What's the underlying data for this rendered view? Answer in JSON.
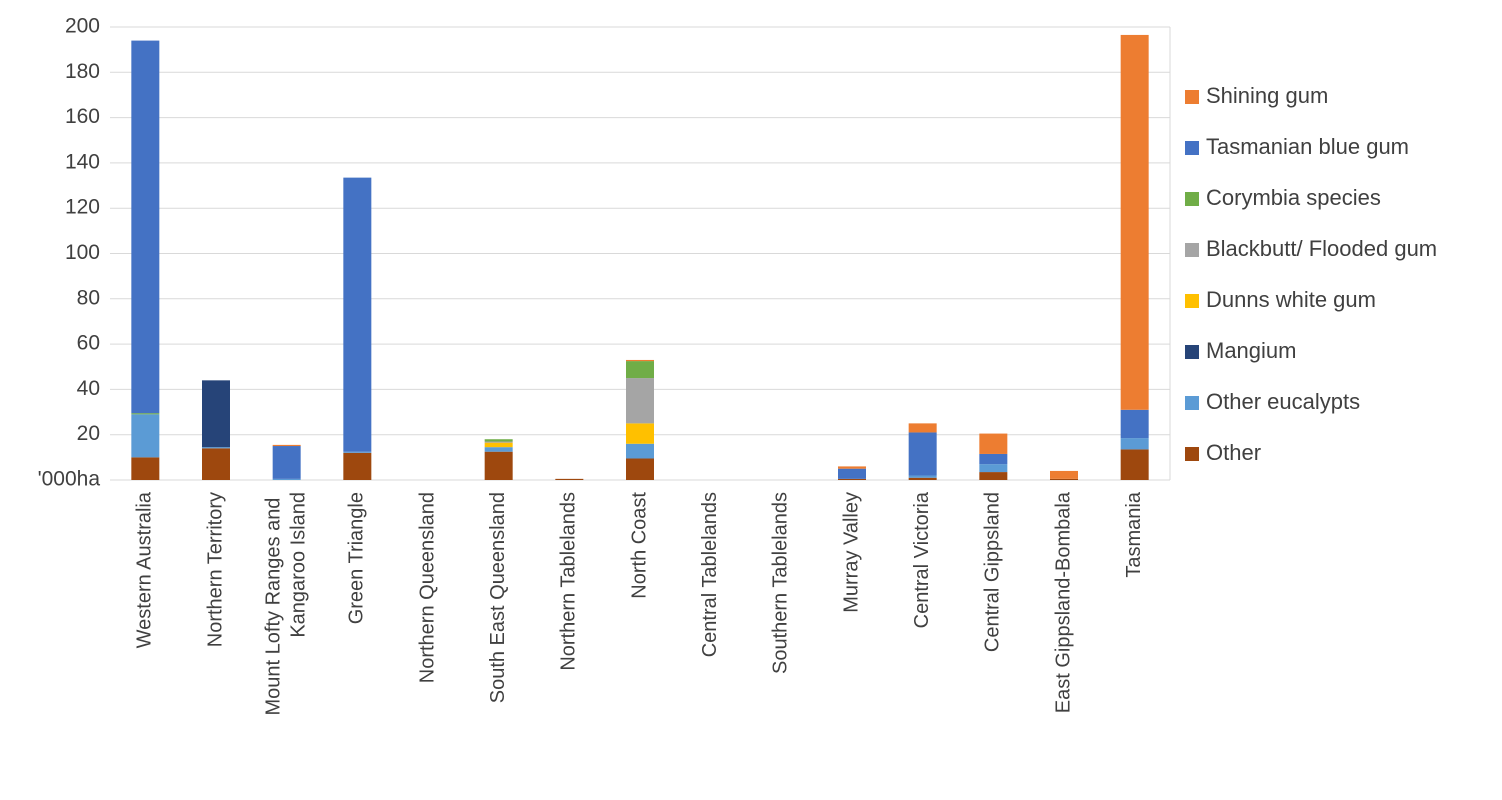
{
  "chart_data": {
    "type": "stacked_bar",
    "categories": [
      "Western Australia",
      "Northern Territory",
      "Mount Lofty Ranges and Kangaroo Island",
      "Green Triangle",
      "Northern Queensland",
      "South East Queensland",
      "Northern Tablelands",
      "North Coast",
      "Central Tablelands",
      "Southern Tablelands",
      "Murray Valley",
      "Central Victoria",
      "Central Gippsland",
      "East Gippsland-Bombala",
      "Tasmania"
    ],
    "series": [
      {
        "name": "Other",
        "color": "#9e480e",
        "values": [
          10,
          14,
          0,
          12,
          0,
          12.5,
          0.5,
          9.5,
          0,
          0,
          0.5,
          1,
          3.5,
          0.5,
          13.5
        ]
      },
      {
        "name": "Other eucalypts",
        "color": "#5b9bd5",
        "values": [
          19,
          0.5,
          0.5,
          0.5,
          0,
          2,
          0,
          6.5,
          0,
          0,
          0,
          1,
          3.5,
          0,
          5
        ]
      },
      {
        "name": "Mangium",
        "color": "#264478",
        "values": [
          0,
          29.5,
          0,
          0,
          0,
          0,
          0,
          0,
          0,
          0,
          0,
          0,
          0,
          0,
          0
        ]
      },
      {
        "name": "Dunns white gum",
        "color": "#ffc000",
        "values": [
          0,
          0,
          0,
          0,
          0,
          2,
          0,
          9,
          0,
          0,
          0,
          0,
          0,
          0,
          0
        ]
      },
      {
        "name": "Blackbutt/ Flooded gum",
        "color": "#a5a5a5",
        "values": [
          0,
          0,
          0,
          0,
          0,
          0.5,
          0,
          20,
          0,
          0,
          0,
          0,
          0,
          0,
          0
        ]
      },
      {
        "name": "Corymbia species",
        "color": "#70ad47",
        "values": [
          0.5,
          0,
          0,
          0,
          0,
          1,
          0,
          7.5,
          0,
          0,
          0,
          0,
          0,
          0,
          0
        ]
      },
      {
        "name": "Tasmanian blue gum",
        "color": "#4472c4",
        "values": [
          164.5,
          0,
          14.5,
          121,
          0,
          0,
          0,
          0,
          0,
          0,
          4.5,
          19,
          4.5,
          0,
          12.5
        ]
      },
      {
        "name": "Shining gum",
        "color": "#ed7d31",
        "values": [
          0,
          0,
          0.5,
          0,
          0,
          0,
          0,
          0.5,
          0,
          0,
          1,
          4,
          9,
          3.5,
          165.5
        ]
      }
    ],
    "ylim": [
      0,
      200
    ],
    "yticks": [
      {
        "value": 0,
        "label": "'000ha"
      },
      20,
      40,
      60,
      80,
      100,
      120,
      140,
      160,
      180,
      200
    ],
    "grid": true,
    "legend": "right"
  }
}
